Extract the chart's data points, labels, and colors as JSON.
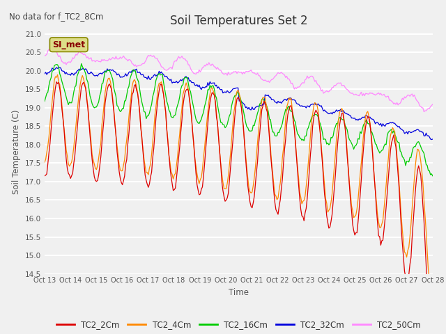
{
  "title": "Soil Temperatures Set 2",
  "no_data_text": "No data for f_TC2_8Cm",
  "xlabel": "Time",
  "ylabel": "Soil Temperature (C)",
  "ylim": [
    14.5,
    21.0
  ],
  "yticks": [
    14.5,
    15.0,
    15.5,
    16.0,
    16.5,
    17.0,
    17.5,
    18.0,
    18.5,
    19.0,
    19.5,
    20.0,
    20.5,
    21.0
  ],
  "xtick_labels": [
    "Oct 13",
    "Oct 14",
    "Oct 15",
    "Oct 16",
    "Oct 17",
    "Oct 18",
    "Oct 19",
    "Oct 20",
    "Oct 21",
    "Oct 22",
    "Oct 23",
    "Oct 24",
    "Oct 25",
    "Oct 26",
    "Oct 27",
    "Oct 28"
  ],
  "legend_labels": [
    "TC2_2Cm",
    "TC2_4Cm",
    "TC2_16Cm",
    "TC2_32Cm",
    "TC2_50Cm"
  ],
  "colors": [
    "#dd0000",
    "#ff8800",
    "#00cc00",
    "#0000dd",
    "#ff88ff"
  ],
  "background_color": "#f0f0f0",
  "plot_bg_color": "#f0f0f0",
  "grid_color": "#e0e0e0",
  "annotation_text": "SI_met",
  "annotation_bg": "#dddd88",
  "annotation_border": "#888800"
}
